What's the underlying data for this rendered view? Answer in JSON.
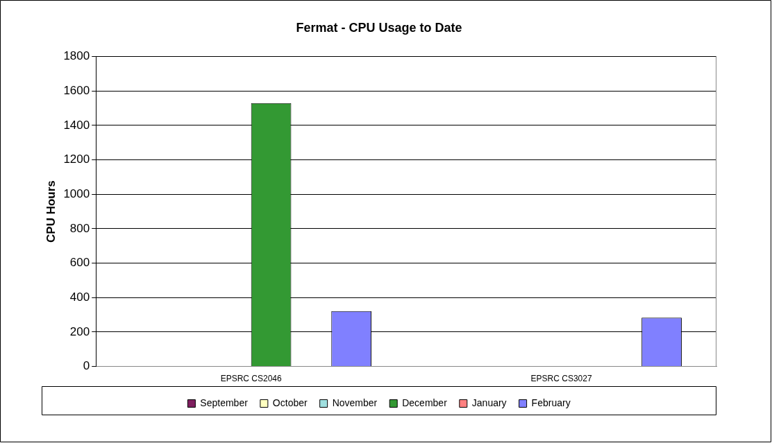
{
  "chart_data": {
    "type": "bar",
    "title": "Fermat - CPU Usage to Date",
    "ylabel": "CPU Hours",
    "categories": [
      "EPSRC CS2046",
      "EPSRC CS3027"
    ],
    "series": [
      {
        "name": "September",
        "color": "#7f1f5f",
        "values": [
          null,
          null
        ]
      },
      {
        "name": "October",
        "color": "#ffffc0",
        "values": [
          null,
          null
        ]
      },
      {
        "name": "November",
        "color": "#a0e0e0",
        "values": [
          null,
          null
        ]
      },
      {
        "name": "December",
        "color": "#339933",
        "values": [
          1530,
          null
        ]
      },
      {
        "name": "January",
        "color": "#ff8080",
        "values": [
          null,
          null
        ]
      },
      {
        "name": "February",
        "color": "#8080ff",
        "values": [
          322,
          283
        ]
      }
    ],
    "ylim": [
      0,
      1800
    ],
    "yticks": [
      0,
      200,
      400,
      600,
      800,
      1000,
      1200,
      1400,
      1600,
      1800
    ],
    "grid": "y",
    "legend": "bottom"
  }
}
